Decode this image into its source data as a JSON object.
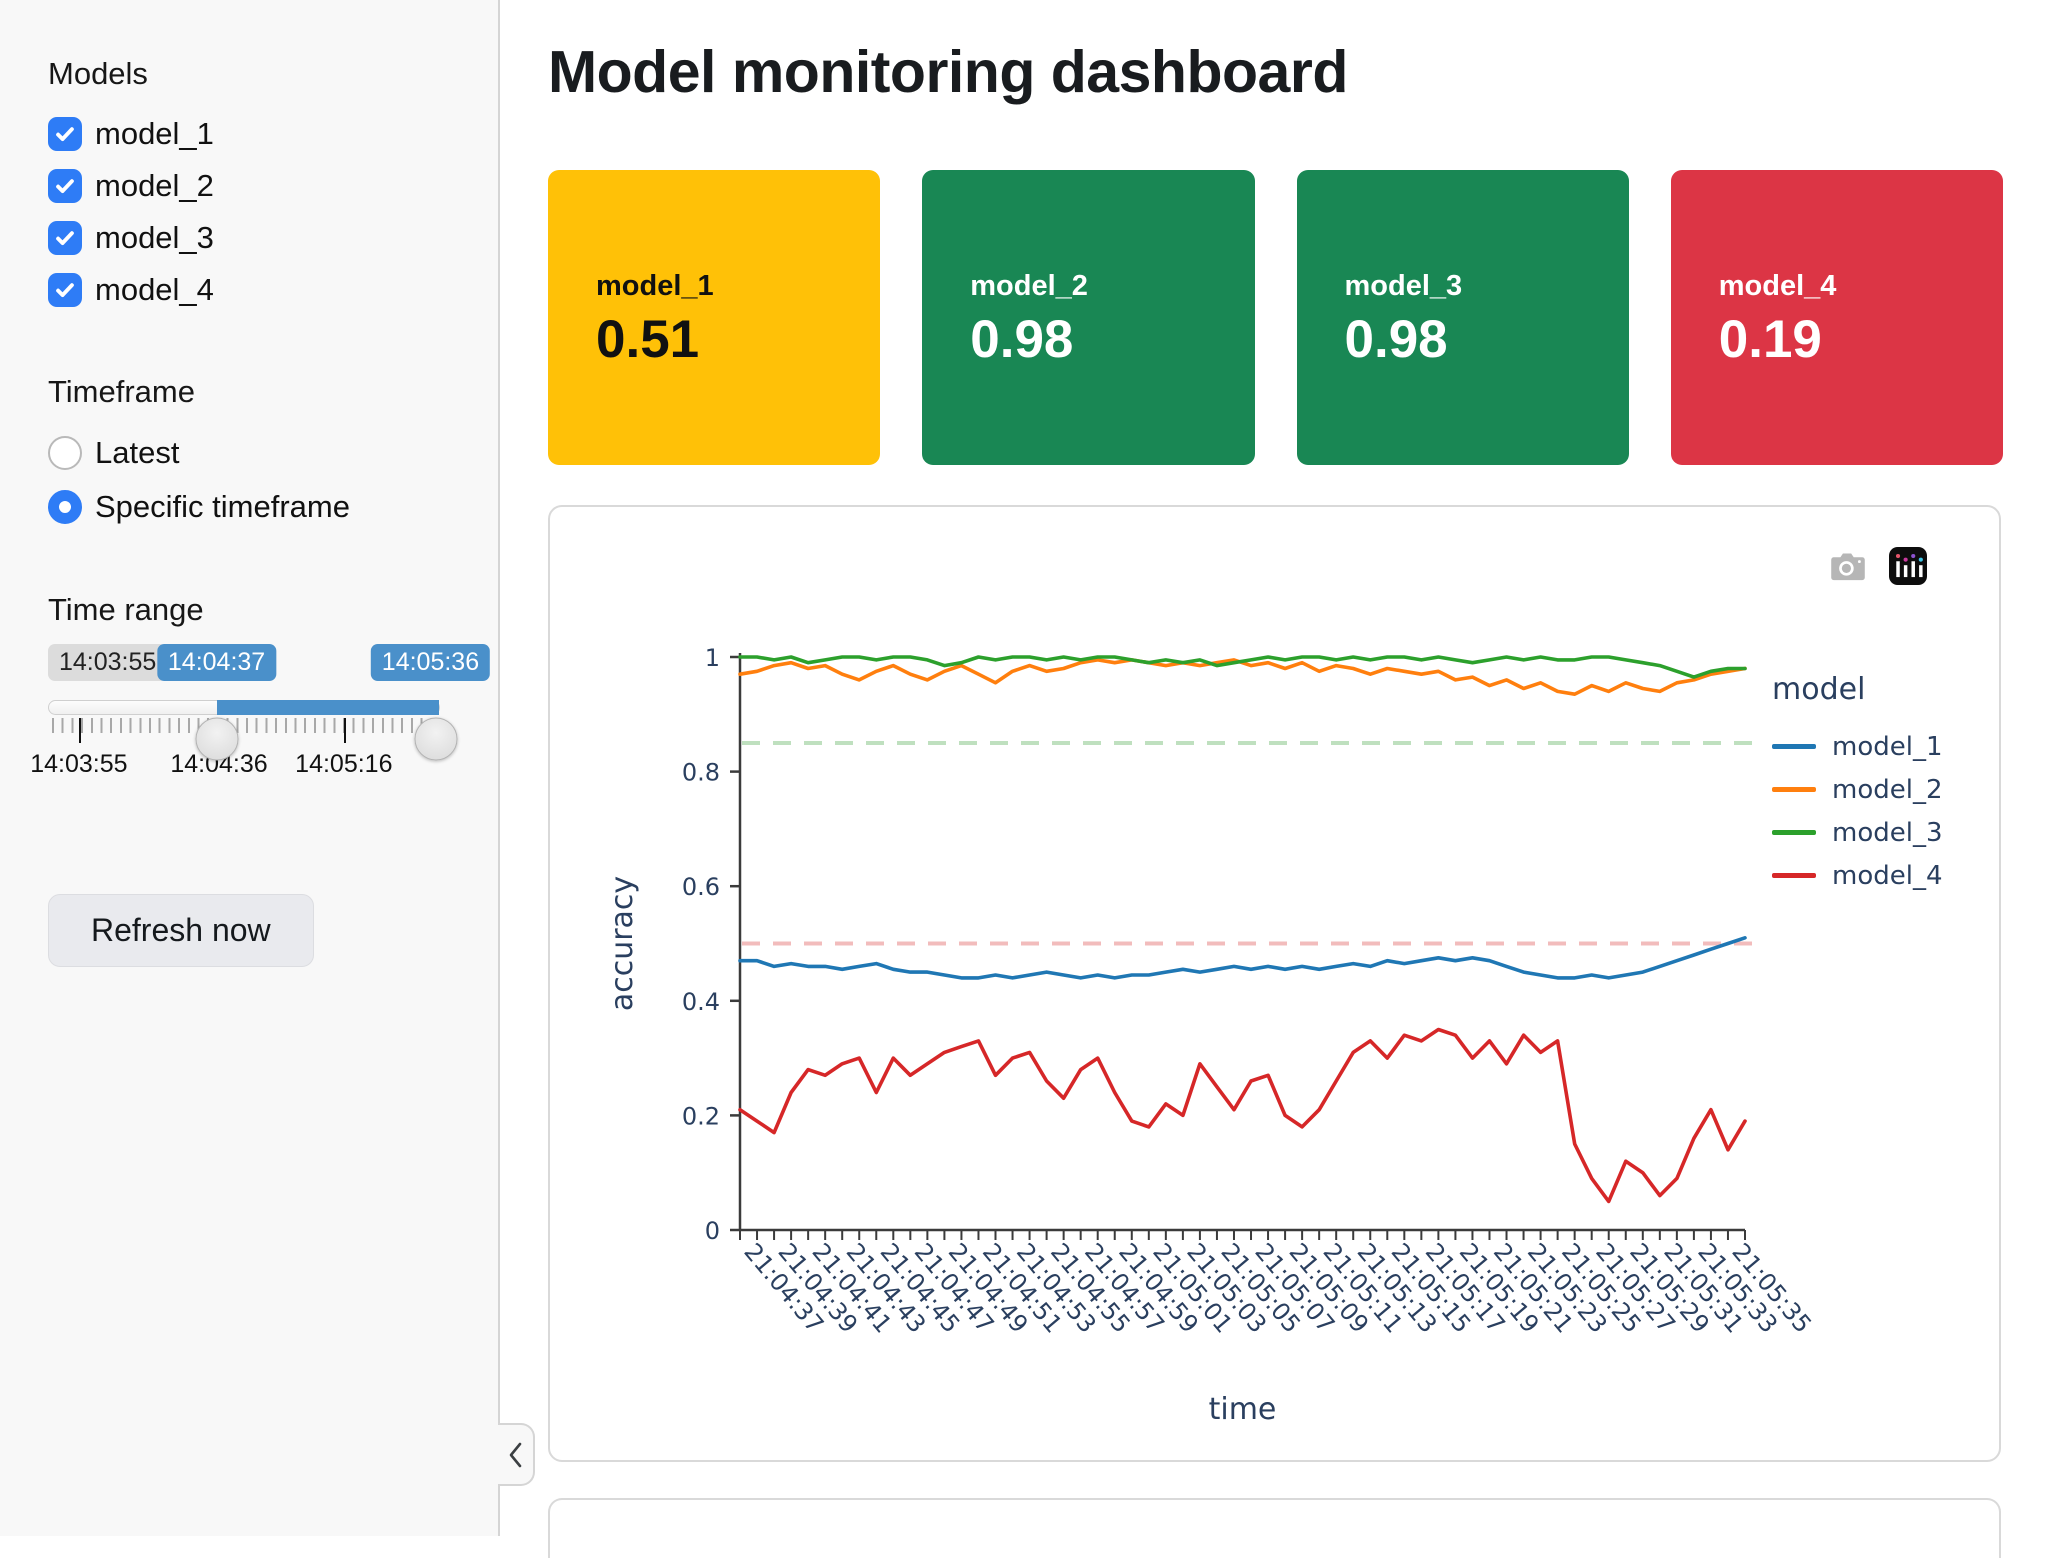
{
  "sidebar": {
    "models_label": "Models",
    "models": [
      {
        "label": "model_1",
        "checked": true
      },
      {
        "label": "model_2",
        "checked": true
      },
      {
        "label": "model_3",
        "checked": true
      },
      {
        "label": "model_4",
        "checked": true
      }
    ],
    "timeframe_label": "Timeframe",
    "timeframe_options": [
      {
        "label": "Latest",
        "selected": false
      },
      {
        "label": "Specific timeframe",
        "selected": true
      }
    ],
    "time_range_label": "Time range",
    "slider": {
      "min_label": "14:03:55",
      "from_value": "14:04:37",
      "to_value": "14:05:36",
      "axis_ticks": [
        "14:03:55",
        "14:04:36",
        "14:05:16"
      ],
      "accent_color": "#4a90ca"
    },
    "refresh_button_label": "Refresh now",
    "collapse_icon": "chevron-left-icon",
    "checkbox_color": "#2e7cf6"
  },
  "header": {
    "title": "Model monitoring dashboard"
  },
  "value_boxes": [
    {
      "label": "model_1",
      "value": "0.51",
      "bg": "#ffc107",
      "fg": "#111111"
    },
    {
      "label": "model_2",
      "value": "0.98",
      "bg": "#198754",
      "fg": "#ffffff"
    },
    {
      "label": "model_3",
      "value": "0.98",
      "bg": "#198754",
      "fg": "#ffffff"
    },
    {
      "label": "model_4",
      "value": "0.19",
      "bg": "#dc3545",
      "fg": "#ffffff"
    }
  ],
  "chart_data": {
    "type": "line",
    "title": "",
    "xlabel": "time",
    "ylabel": "accuracy",
    "ylim": [
      0,
      1
    ],
    "yticks": [
      0,
      0.2,
      0.4,
      0.6,
      0.8,
      1
    ],
    "grid": false,
    "legend_title": "model",
    "legend_position": "right",
    "points_per_tick": 2,
    "x_tick_labels": [
      "21:04:37",
      "21:04:39",
      "21:04:41",
      "21:04:43",
      "21:04:45",
      "21:04:47",
      "21:04:49",
      "21:04:51",
      "21:04:53",
      "21:04:55",
      "21:04:57",
      "21:04:59",
      "21:05:01",
      "21:05:03",
      "21:05:05",
      "21:05:07",
      "21:05:09",
      "21:05:11",
      "21:05:13",
      "21:05:15",
      "21:05:17",
      "21:05:19",
      "21:05:21",
      "21:05:23",
      "21:05:25",
      "21:05:27",
      "21:05:29",
      "21:05:31",
      "21:05:33",
      "21:05:35"
    ],
    "thresholds": [
      {
        "y": 0.85,
        "color": "#bfe0bf"
      },
      {
        "y": 0.5,
        "color": "#f2bcbc"
      }
    ],
    "series": [
      {
        "name": "model_1",
        "color": "#1f77b4",
        "values": [
          0.47,
          0.47,
          0.46,
          0.465,
          0.46,
          0.46,
          0.455,
          0.46,
          0.465,
          0.455,
          0.45,
          0.45,
          0.445,
          0.44,
          0.44,
          0.445,
          0.44,
          0.445,
          0.45,
          0.445,
          0.44,
          0.445,
          0.44,
          0.445,
          0.445,
          0.45,
          0.455,
          0.45,
          0.455,
          0.46,
          0.455,
          0.46,
          0.455,
          0.46,
          0.455,
          0.46,
          0.465,
          0.46,
          0.47,
          0.465,
          0.47,
          0.475,
          0.47,
          0.475,
          0.47,
          0.46,
          0.45,
          0.445,
          0.44,
          0.44,
          0.445,
          0.44,
          0.445,
          0.45,
          0.46,
          0.47,
          0.48,
          0.49,
          0.5,
          0.51
        ]
      },
      {
        "name": "model_2",
        "color": "#ff7f0e",
        "values": [
          0.97,
          0.975,
          0.985,
          0.99,
          0.98,
          0.985,
          0.97,
          0.96,
          0.975,
          0.985,
          0.97,
          0.96,
          0.975,
          0.985,
          0.97,
          0.955,
          0.975,
          0.985,
          0.975,
          0.98,
          0.99,
          0.995,
          0.99,
          0.995,
          0.99,
          0.985,
          0.99,
          0.985,
          0.99,
          0.995,
          0.985,
          0.99,
          0.98,
          0.99,
          0.975,
          0.985,
          0.98,
          0.97,
          0.98,
          0.975,
          0.97,
          0.975,
          0.96,
          0.965,
          0.95,
          0.96,
          0.945,
          0.955,
          0.94,
          0.935,
          0.95,
          0.94,
          0.955,
          0.945,
          0.94,
          0.955,
          0.96,
          0.97,
          0.975,
          0.98
        ]
      },
      {
        "name": "model_3",
        "color": "#2ca02c",
        "values": [
          1,
          1,
          0.995,
          1,
          0.99,
          0.995,
          1,
          1,
          0.995,
          1,
          1,
          0.995,
          0.985,
          0.99,
          1,
          0.995,
          1,
          1,
          0.995,
          1,
          0.995,
          1,
          1,
          0.995,
          0.99,
          0.995,
          0.99,
          0.995,
          0.985,
          0.99,
          0.995,
          1,
          0.995,
          1,
          1,
          0.995,
          1,
          0.995,
          1,
          1,
          0.995,
          1,
          0.995,
          0.99,
          0.995,
          1,
          0.995,
          1,
          0.995,
          0.995,
          1,
          1,
          0.995,
          0.99,
          0.985,
          0.975,
          0.965,
          0.975,
          0.98,
          0.98
        ]
      },
      {
        "name": "model_4",
        "color": "#d62728",
        "values": [
          0.21,
          0.19,
          0.17,
          0.24,
          0.28,
          0.27,
          0.29,
          0.3,
          0.24,
          0.3,
          0.27,
          0.29,
          0.31,
          0.32,
          0.33,
          0.27,
          0.3,
          0.31,
          0.26,
          0.23,
          0.28,
          0.3,
          0.24,
          0.19,
          0.18,
          0.22,
          0.2,
          0.29,
          0.25,
          0.21,
          0.26,
          0.27,
          0.2,
          0.18,
          0.21,
          0.26,
          0.31,
          0.33,
          0.3,
          0.34,
          0.33,
          0.35,
          0.34,
          0.3,
          0.33,
          0.29,
          0.34,
          0.31,
          0.33,
          0.15,
          0.09,
          0.05,
          0.12,
          0.1,
          0.06,
          0.09,
          0.16,
          0.21,
          0.14,
          0.19
        ]
      }
    ],
    "modebar_icons": [
      "camera-icon",
      "plotly-logo-icon"
    ]
  }
}
